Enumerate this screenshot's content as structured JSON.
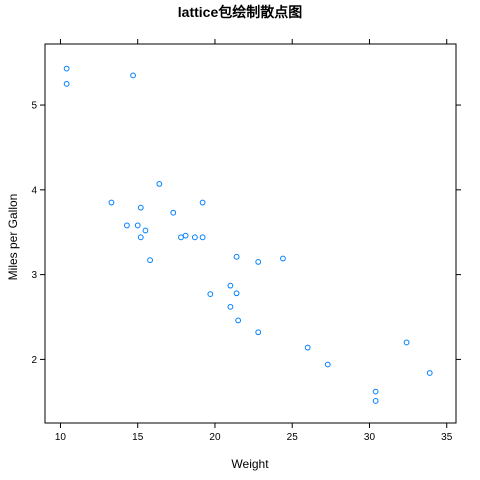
{
  "chart_data": {
    "type": "scatter",
    "title": "lattice包绘制散点图",
    "xlabel": "Weight",
    "ylabel": "Miles per Gallon",
    "xlim": [
      9,
      35.6
    ],
    "ylim": [
      1.25,
      5.72
    ],
    "xticks": [
      10,
      15,
      20,
      25,
      30,
      35
    ],
    "yticks": [
      2,
      3,
      4,
      5
    ],
    "grid": false,
    "point_color": "#0080ff",
    "points": [
      {
        "x": 10.4,
        "y": 5.43
      },
      {
        "x": 10.4,
        "y": 5.25
      },
      {
        "x": 14.7,
        "y": 5.35
      },
      {
        "x": 13.3,
        "y": 3.85
      },
      {
        "x": 14.3,
        "y": 3.58
      },
      {
        "x": 15.0,
        "y": 3.58
      },
      {
        "x": 15.2,
        "y": 3.79
      },
      {
        "x": 15.2,
        "y": 3.44
      },
      {
        "x": 15.5,
        "y": 3.52
      },
      {
        "x": 15.8,
        "y": 3.17
      },
      {
        "x": 16.4,
        "y": 4.07
      },
      {
        "x": 17.3,
        "y": 3.73
      },
      {
        "x": 17.8,
        "y": 3.44
      },
      {
        "x": 18.1,
        "y": 3.46
      },
      {
        "x": 18.7,
        "y": 3.44
      },
      {
        "x": 19.2,
        "y": 3.85
      },
      {
        "x": 19.2,
        "y": 3.44
      },
      {
        "x": 19.7,
        "y": 2.77
      },
      {
        "x": 21.0,
        "y": 2.87
      },
      {
        "x": 21.0,
        "y": 2.62
      },
      {
        "x": 21.4,
        "y": 3.21
      },
      {
        "x": 21.4,
        "y": 2.78
      },
      {
        "x": 21.5,
        "y": 2.46
      },
      {
        "x": 22.8,
        "y": 3.15
      },
      {
        "x": 22.8,
        "y": 2.32
      },
      {
        "x": 24.4,
        "y": 3.19
      },
      {
        "x": 26.0,
        "y": 2.14
      },
      {
        "x": 27.3,
        "y": 1.94
      },
      {
        "x": 30.4,
        "y": 1.62
      },
      {
        "x": 30.4,
        "y": 1.51
      },
      {
        "x": 32.4,
        "y": 2.2
      },
      {
        "x": 33.9,
        "y": 1.84
      }
    ]
  }
}
